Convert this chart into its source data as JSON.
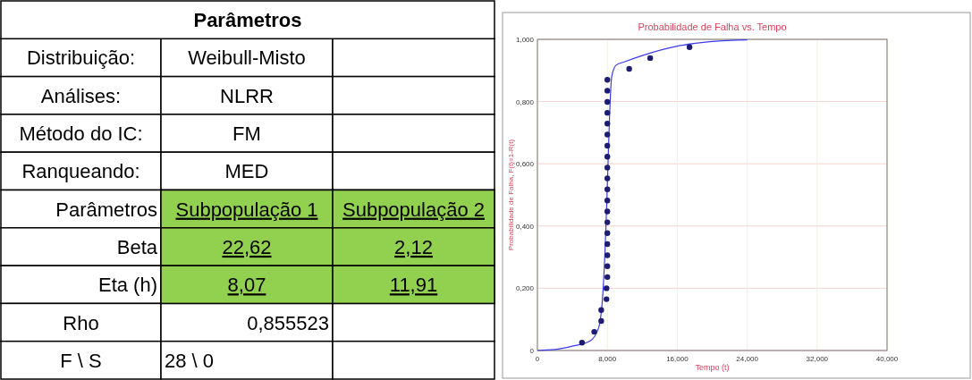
{
  "chart_data": [
    {
      "type": "other",
      "title": "Parâmetros",
      "annotations": [
        "Distribuição:",
        "Weibull-Misto",
        "Análises:",
        "NLRR",
        "Método do IC:",
        "FM",
        "Ranqueando:",
        "MED",
        "Parâmetros",
        "Subpopulação 1",
        "Subpopulação 2",
        "Beta",
        "22,62",
        "2,12",
        "Eta (h)",
        "8,07",
        "11,91",
        "Rho",
        "0,855523",
        "F \\ S",
        "28 \\ 0"
      ]
    },
    {
      "type": "scatter",
      "title": "Probabilidade de Falha vs. Tempo",
      "xlabel": "Tempo (t)",
      "ylabel": "Probabilidade de Falha, F(t)=1-R(t)",
      "xlim": [
        0,
        40
      ],
      "ylim": [
        0,
        1
      ],
      "xticks": [
        0,
        {
          "value": 8,
          "label": "8,000"
        },
        {
          "value": 16,
          "label": "16,000"
        },
        {
          "value": 24,
          "label": "24,000"
        },
        {
          "value": 32,
          "label": "32,000"
        },
        {
          "value": 40,
          "label": "40,000"
        }
      ],
      "yticks": [
        0,
        {
          "value": 0.2,
          "label": "0,200"
        },
        {
          "value": 0.4,
          "label": "0,400"
        },
        {
          "value": 0.6,
          "label": "0,600"
        },
        {
          "value": 0.8,
          "label": "0,800"
        },
        {
          "value": 1,
          "label": "1,000"
        }
      ],
      "grid": true,
      "series": [
        {
          "type": "line",
          "color": "#3a3af0",
          "x": [
            0,
            2,
            4,
            6,
            7,
            7.5,
            7.75,
            8,
            8.25,
            8.5,
            9,
            10,
            12,
            16,
            20,
            24
          ],
          "values": [
            0,
            0.003,
            0.014,
            0.03,
            0.073,
            0.19,
            0.33,
            0.53,
            0.75,
            0.88,
            0.917,
            0.928,
            0.948,
            0.978,
            0.993,
            0.998
          ]
        },
        {
          "type": "scatter",
          "marker": "circle",
          "color": "#1c1c70",
          "x": [
            5.1,
            6.5,
            7.3,
            7.3,
            7.9,
            7.9,
            8,
            8,
            8,
            8,
            8,
            8,
            8,
            8,
            8,
            8,
            8,
            8,
            8,
            8,
            8,
            8,
            8,
            8,
            8,
            10.5,
            12.9,
            17.4
          ],
          "values": [
            0.025,
            0.06,
            0.095,
            0.13,
            0.165,
            0.2,
            0.236,
            0.271,
            0.306,
            0.342,
            0.377,
            0.412,
            0.447,
            0.482,
            0.518,
            0.553,
            0.588,
            0.623,
            0.658,
            0.694,
            0.729,
            0.764,
            0.799,
            0.835,
            0.87,
            0.905,
            0.94,
            0.975
          ]
        }
      ]
    }
  ]
}
